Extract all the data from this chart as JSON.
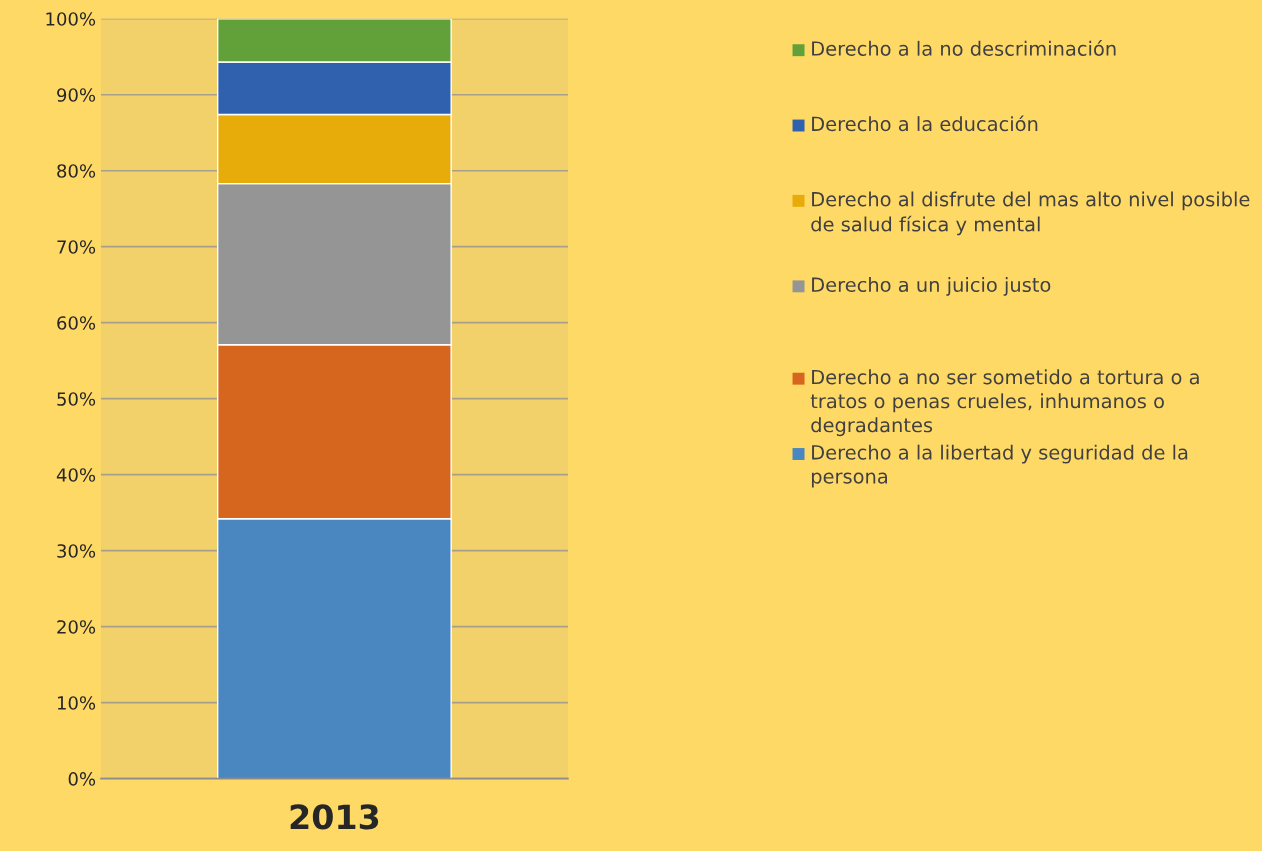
{
  "chart_data": {
    "type": "bar",
    "stacked": true,
    "categories": [
      "2013"
    ],
    "series": [
      {
        "name": "Derecho a la libertad y seguridad de la persona",
        "color": "#4a86c0",
        "values": [
          34.2
        ]
      },
      {
        "name": "Derecho a no ser sometido a tortura o a tratos o penas crueles, inhumanos o degradantes",
        "color": "#d6661e",
        "values": [
          22.9
        ]
      },
      {
        "name": "Derecho a un juicio justo",
        "color": "#959595",
        "values": [
          21.2
        ]
      },
      {
        "name": "Derecho al disfrute del mas alto nivel posible de salud física y mental",
        "color": "#e7ab0a",
        "values": [
          9.1
        ]
      },
      {
        "name": "Derecho a la educación",
        "color": "#3061ae",
        "values": [
          6.9
        ]
      },
      {
        "name": "Derecho a la no descriminación",
        "color": "#62a03a",
        "values": [
          5.7
        ]
      }
    ],
    "ylim": [
      0,
      100
    ],
    "yticks": [
      {
        "value": 0,
        "label": "0%"
      },
      {
        "value": 10,
        "label": "10%"
      },
      {
        "value": 20,
        "label": "20%"
      },
      {
        "value": 30,
        "label": "30%"
      },
      {
        "value": 40,
        "label": "40%"
      },
      {
        "value": 50,
        "label": "50%"
      },
      {
        "value": 60,
        "label": "60%"
      },
      {
        "value": 70,
        "label": "70%"
      },
      {
        "value": 80,
        "label": "80%"
      },
      {
        "value": 90,
        "label": "90%"
      },
      {
        "value": 100,
        "label": "100%"
      }
    ],
    "grid": "y",
    "legend": "right"
  }
}
